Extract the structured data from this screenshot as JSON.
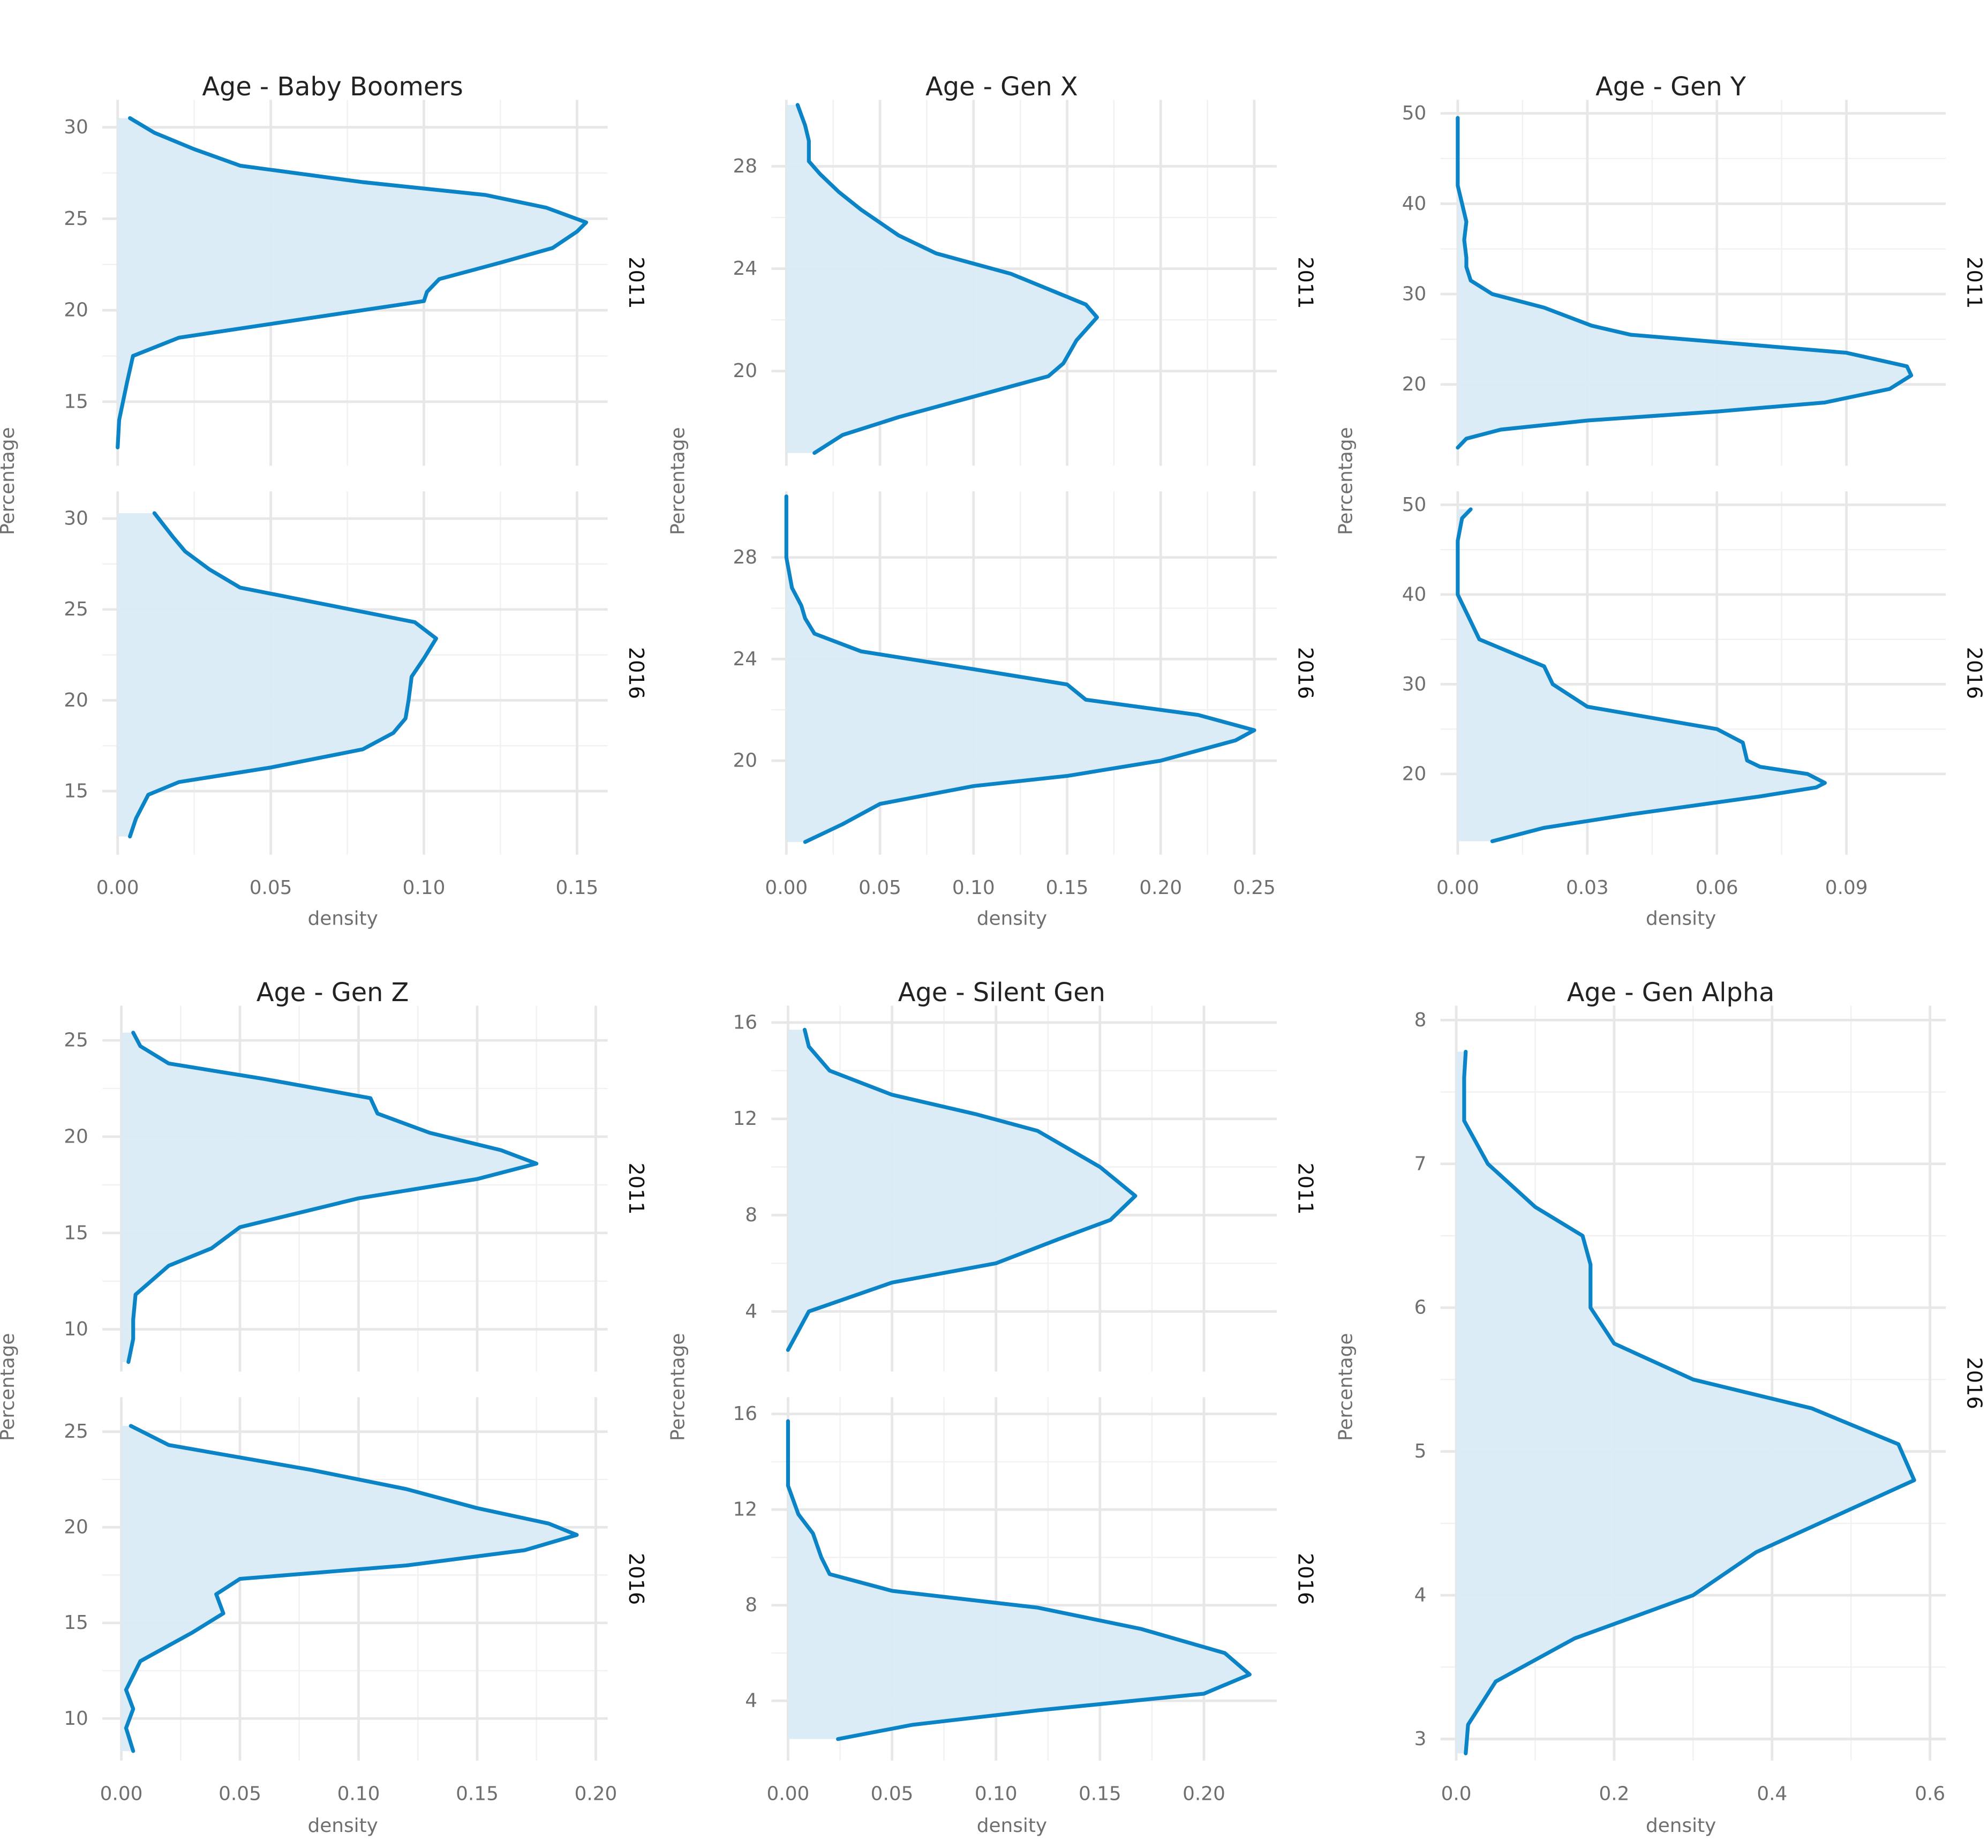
{
  "chart_data": [
    {
      "type": "area",
      "title": "Age - Baby Boomers",
      "xlabel": "density",
      "ylabel": "Percentage",
      "x_ticks": [
        0.0,
        0.05,
        0.1,
        0.15
      ],
      "x_tick_labels": [
        "0.00",
        "0.05",
        "0.10",
        "0.15"
      ],
      "xlim": [
        -0.005,
        0.16
      ],
      "ylim": [
        11.5,
        31.5
      ],
      "y_ticks": [
        15,
        20,
        25,
        30
      ],
      "y_tick_labels": [
        "15",
        "20",
        "25",
        "30"
      ],
      "grid": true,
      "panels": [
        {
          "strip": "2011",
          "series": [
            {
              "density": [
                0.0,
                0.0005,
                0.003,
                0.005,
                0.02,
                0.06,
                0.1,
                0.101,
                0.105,
                0.125,
                0.142,
                0.15,
                0.153,
                0.14,
                0.12,
                0.08,
                0.04,
                0.025,
                0.012,
                0.004
              ],
              "percentage": [
                12.5,
                14.0,
                16.0,
                17.5,
                18.5,
                19.5,
                20.5,
                21.0,
                21.7,
                22.6,
                23.4,
                24.3,
                24.8,
                25.6,
                26.3,
                27.0,
                27.9,
                28.8,
                29.7,
                30.5
              ]
            }
          ]
        },
        {
          "strip": "2016",
          "series": [
            {
              "density": [
                0.004,
                0.006,
                0.01,
                0.02,
                0.05,
                0.08,
                0.09,
                0.094,
                0.095,
                0.096,
                0.1,
                0.104,
                0.097,
                0.07,
                0.04,
                0.03,
                0.022,
                0.018,
                0.012
              ],
              "percentage": [
                12.5,
                13.5,
                14.8,
                15.5,
                16.3,
                17.3,
                18.2,
                19.0,
                20.0,
                21.3,
                22.3,
                23.4,
                24.3,
                25.2,
                26.2,
                27.2,
                28.2,
                29.0,
                30.3
              ]
            }
          ]
        }
      ]
    },
    {
      "type": "area",
      "title": "Age - Gen X",
      "xlabel": "density",
      "ylabel": "Percentage",
      "x_ticks": [
        0.0,
        0.05,
        0.1,
        0.15,
        0.2,
        0.25
      ],
      "x_tick_labels": [
        "0.00",
        "0.05",
        "0.10",
        "0.15",
        "0.20",
        "0.25"
      ],
      "xlim": [
        -0.008,
        0.262
      ],
      "ylim": [
        16.3,
        30.6
      ],
      "y_ticks": [
        20,
        24,
        28
      ],
      "y_tick_labels": [
        "20",
        "24",
        "28"
      ],
      "grid": true,
      "panels": [
        {
          "strip": "2011",
          "series": [
            {
              "density": [
                0.015,
                0.03,
                0.06,
                0.1,
                0.14,
                0.148,
                0.155,
                0.166,
                0.16,
                0.12,
                0.08,
                0.06,
                0.04,
                0.028,
                0.018,
                0.012,
                0.012,
                0.01,
                0.006
              ],
              "percentage": [
                16.8,
                17.5,
                18.2,
                19.0,
                19.8,
                20.3,
                21.2,
                22.1,
                22.6,
                23.8,
                24.6,
                25.3,
                26.3,
                27.0,
                27.7,
                28.2,
                29.0,
                29.6,
                30.4
              ]
            }
          ]
        },
        {
          "strip": "2016",
          "series": [
            {
              "density": [
                0.01,
                0.03,
                0.05,
                0.1,
                0.15,
                0.2,
                0.24,
                0.25,
                0.22,
                0.16,
                0.15,
                0.1,
                0.04,
                0.015,
                0.01,
                0.008,
                0.003,
                0.0,
                0.0
              ],
              "percentage": [
                16.8,
                17.5,
                18.3,
                19.0,
                19.4,
                20.0,
                20.8,
                21.2,
                21.8,
                22.4,
                23.0,
                23.6,
                24.3,
                25.0,
                25.6,
                26.1,
                26.8,
                28.0,
                30.4
              ]
            }
          ]
        }
      ]
    },
    {
      "type": "area",
      "title": "Age - Gen Y",
      "xlabel": "density",
      "ylabel": "Percentage",
      "x_ticks": [
        0.0,
        0.03,
        0.06,
        0.09
      ],
      "x_tick_labels": [
        "0.00",
        "0.03",
        "0.06",
        "0.09"
      ],
      "xlim": [
        -0.004,
        0.113
      ],
      "ylim": [
        11.0,
        51.5
      ],
      "y_ticks": [
        20,
        30,
        40,
        50
      ],
      "y_tick_labels": [
        "20",
        "30",
        "40",
        "50"
      ],
      "grid": true,
      "panels": [
        {
          "strip": "2011",
          "series": [
            {
              "density": [
                0.0,
                0.002,
                0.01,
                0.03,
                0.06,
                0.085,
                0.1,
                0.105,
                0.104,
                0.09,
                0.04,
                0.031,
                0.02,
                0.008,
                0.003,
                0.002,
                0.002,
                0.0015,
                0.002,
                0.001,
                0.0,
                0.0
              ],
              "percentage": [
                13.0,
                14.0,
                15.0,
                16.0,
                17.0,
                18.0,
                19.5,
                21.0,
                22.0,
                23.5,
                25.5,
                26.5,
                28.5,
                30.0,
                31.5,
                33.0,
                34.0,
                36.0,
                38.0,
                40.0,
                42.0,
                49.5
              ]
            }
          ]
        },
        {
          "strip": "2016",
          "series": [
            {
              "density": [
                0.008,
                0.02,
                0.04,
                0.07,
                0.083,
                0.085,
                0.081,
                0.07,
                0.067,
                0.066,
                0.06,
                0.03,
                0.022,
                0.02,
                0.005,
                0.003,
                0.0,
                0.0,
                0.001,
                0.003
              ],
              "percentage": [
                12.5,
                14.0,
                15.5,
                17.5,
                18.5,
                19.0,
                20.0,
                20.8,
                21.5,
                23.5,
                25.0,
                27.5,
                30.0,
                32.0,
                35.0,
                37.0,
                40.0,
                46.0,
                48.5,
                49.5
              ]
            }
          ]
        }
      ]
    },
    {
      "type": "area",
      "title": "Age - Gen Z",
      "xlabel": "density",
      "ylabel": "Percentage",
      "x_ticks": [
        0.0,
        0.05,
        0.1,
        0.15,
        0.2
      ],
      "x_tick_labels": [
        "0.00",
        "0.05",
        "0.10",
        "0.15",
        "0.20"
      ],
      "xlim": [
        -0.008,
        0.205
      ],
      "ylim": [
        7.8,
        26.8
      ],
      "y_ticks": [
        10,
        15,
        20,
        25
      ],
      "y_tick_labels": [
        "10",
        "15",
        "20",
        "25"
      ],
      "grid": true,
      "panels": [
        {
          "strip": "2011",
          "series": [
            {
              "density": [
                0.003,
                0.005,
                0.005,
                0.006,
                0.02,
                0.038,
                0.05,
                0.1,
                0.15,
                0.175,
                0.16,
                0.13,
                0.108,
                0.105,
                0.06,
                0.02,
                0.008,
                0.005
              ],
              "percentage": [
                8.3,
                9.5,
                10.5,
                11.8,
                13.3,
                14.2,
                15.3,
                16.8,
                17.8,
                18.6,
                19.3,
                20.2,
                21.2,
                22.0,
                23.0,
                23.8,
                24.7,
                25.4
              ]
            }
          ]
        },
        {
          "strip": "2016",
          "series": [
            {
              "density": [
                0.005,
                0.002,
                0.005,
                0.002,
                0.008,
                0.03,
                0.043,
                0.04,
                0.05,
                0.12,
                0.17,
                0.192,
                0.18,
                0.15,
                0.12,
                0.08,
                0.02,
                0.004
              ],
              "percentage": [
                8.3,
                9.5,
                10.5,
                11.5,
                13.0,
                14.5,
                15.5,
                16.5,
                17.3,
                18.0,
                18.8,
                19.6,
                20.2,
                21.0,
                22.0,
                23.0,
                24.3,
                25.3
              ]
            }
          ]
        }
      ]
    },
    {
      "type": "area",
      "title": "Age - Silent Gen",
      "xlabel": "density",
      "ylabel": "Percentage",
      "x_ticks": [
        0.0,
        0.05,
        0.1,
        0.15,
        0.2
      ],
      "x_tick_labels": [
        "0.00",
        "0.05",
        "0.10",
        "0.15",
        "0.20"
      ],
      "xlim": [
        -0.008,
        0.235
      ],
      "ylim": [
        1.5,
        16.7
      ],
      "y_ticks": [
        4,
        8,
        12,
        16
      ],
      "y_tick_labels": [
        "4",
        "8",
        "12",
        "16"
      ],
      "grid": true,
      "panels": [
        {
          "strip": "2011",
          "series": [
            {
              "density": [
                0.0,
                0.01,
                0.05,
                0.1,
                0.13,
                0.155,
                0.167,
                0.15,
                0.12,
                0.09,
                0.05,
                0.02,
                0.01,
                0.008
              ],
              "percentage": [
                2.4,
                4.0,
                5.2,
                6.0,
                7.0,
                7.8,
                8.8,
                10.0,
                11.5,
                12.2,
                13.0,
                14.0,
                15.0,
                15.7
              ]
            }
          ]
        },
        {
          "strip": "2016",
          "series": [
            {
              "density": [
                0.024,
                0.06,
                0.12,
                0.2,
                0.222,
                0.21,
                0.17,
                0.12,
                0.05,
                0.02,
                0.016,
                0.012,
                0.005,
                0.0,
                0.0
              ],
              "percentage": [
                2.4,
                3.0,
                3.6,
                4.3,
                5.1,
                6.0,
                7.0,
                7.9,
                8.6,
                9.3,
                10.0,
                11.0,
                11.8,
                13.0,
                15.7
              ]
            }
          ]
        }
      ]
    },
    {
      "type": "area",
      "title": "Age - Gen Alpha",
      "xlabel": "density",
      "ylabel": "Percentage",
      "x_ticks": [
        0.0,
        0.2,
        0.4,
        0.6
      ],
      "x_tick_labels": [
        "0.0",
        "0.2",
        "0.4",
        "0.6"
      ],
      "xlim": [
        -0.02,
        0.62
      ],
      "ylim": [
        2.85,
        8.1
      ],
      "y_ticks": [
        3,
        4,
        5,
        6,
        7,
        8
      ],
      "y_tick_labels": [
        "3",
        "4",
        "5",
        "6",
        "7",
        "8"
      ],
      "grid": true,
      "panels": [
        {
          "strip": "2016",
          "series": [
            {
              "density": [
                0.012,
                0.015,
                0.05,
                0.15,
                0.3,
                0.38,
                0.5,
                0.58,
                0.56,
                0.45,
                0.3,
                0.2,
                0.17,
                0.17,
                0.16,
                0.1,
                0.04,
                0.01,
                0.01,
                0.012
              ],
              "percentage": [
                2.9,
                3.1,
                3.4,
                3.7,
                4.0,
                4.3,
                4.6,
                4.8,
                5.05,
                5.3,
                5.5,
                5.75,
                6.0,
                6.3,
                6.5,
                6.7,
                7.0,
                7.3,
                7.6,
                7.78
              ]
            }
          ]
        }
      ]
    }
  ]
}
